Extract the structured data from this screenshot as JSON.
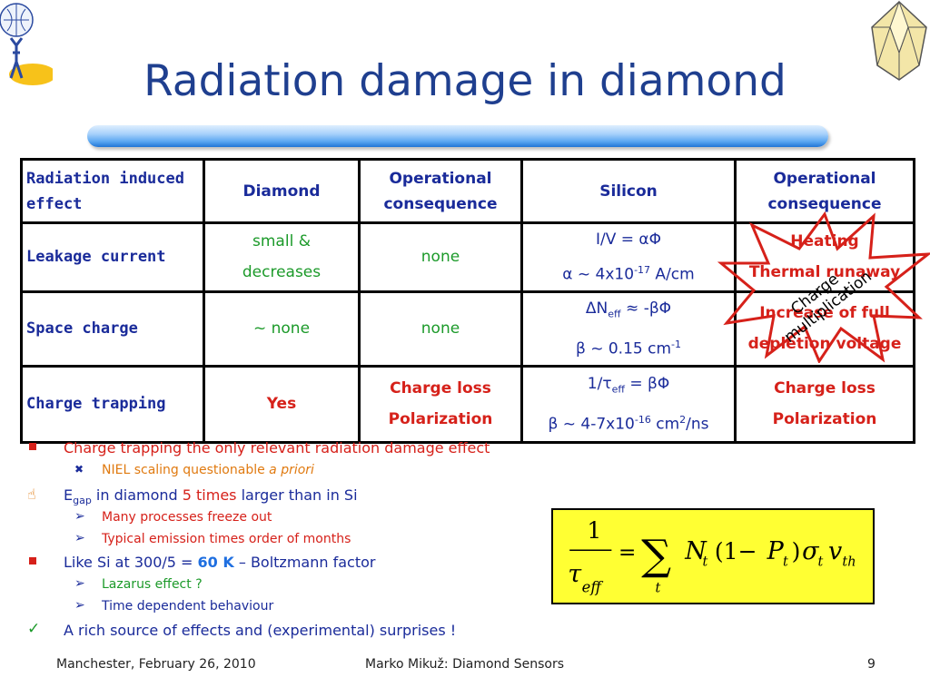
{
  "title": "Radiation damage in diamond",
  "table": {
    "headers": [
      "Radiation induced effect",
      "Diamond",
      "Operational consequence",
      "Silicon",
      "Operational consequence"
    ],
    "rows": [
      {
        "label": "Leakage current",
        "diamond": [
          "small &",
          "decreases"
        ],
        "diamond_consequence": "none",
        "silicon_l1": "I/V = αΦ",
        "silicon_l2_pre": "α ~ 4x10",
        "silicon_l2_sup": "-17",
        "silicon_l2_post": " A/cm",
        "silicon_consequence": [
          "Heating",
          "Thermal runaway"
        ]
      },
      {
        "label": "Space charge",
        "diamond": "~ none",
        "diamond_consequence": "none",
        "silicon_l1_pre": "ΔN",
        "silicon_l1_sub": "eff",
        "silicon_l1_post": " ≈ -βΦ",
        "silicon_l2_pre": "β ~ 0.15 cm",
        "silicon_l2_sup": "-1",
        "silicon_consequence": [
          "Increase of full",
          "depletion voltage"
        ]
      },
      {
        "label": "Charge trapping",
        "diamond": "Yes",
        "diamond_consequence": [
          "Charge loss",
          "Polarization"
        ],
        "silicon_l1_pre": "1/τ",
        "silicon_l1_sub": "eff",
        "silicon_l1_post": " = βΦ",
        "silicon_l2_pre": "β ~ 4-7x10",
        "silicon_l2_sup": "-16",
        "silicon_l2_mid": " cm",
        "silicon_l2_sup2": "2",
        "silicon_l2_post": "/ns",
        "silicon_consequence": [
          "Charge loss",
          "Polarization"
        ]
      }
    ],
    "starburst_text": [
      "Charge",
      "multiplication"
    ]
  },
  "bullets": {
    "b1": "Charge trapping the only relevant radiation damage effect",
    "b1_1_pre": "NIEL scaling questionable ",
    "b1_1_em": "a priori",
    "b2_pre": "E",
    "b2_sub": "gap",
    "b2_mid": " in diamond ",
    "b2_hl": "5 times",
    "b2_post": " larger than in Si",
    "b2_1": "Many processes freeze out",
    "b2_2": "Typical emission times order of months",
    "b3_pre": "Like Si at 300/5 = ",
    "b3_hl": "60 K",
    "b3_post": " – Boltzmann factor",
    "b3_1": "Lazarus effect ?",
    "b3_2": "Time dependent behaviour",
    "b4": "A rich source of effects and (experimental) surprises !"
  },
  "formula": {
    "numerator": "1",
    "tau": "τ",
    "eff": "eff",
    "eq": "=",
    "sum": "∑",
    "sum_index": "t",
    "N": "N",
    "N_sub": "t",
    "open": "(1−",
    "P": "P",
    "P_sub": "t",
    "close": ")",
    "sigma": "σ",
    "sigma_sub": "t",
    "v": "v",
    "v_sub": "th"
  },
  "footer": {
    "left": "Manchester, February 26, 2010",
    "center": "Marko Mikuž: Diamond Sensors",
    "page": "9"
  },
  "colors": {
    "title": "#1f3f8f",
    "table_text": "#1a2b9a",
    "green": "#1c9a2a",
    "red": "#d6211a",
    "formula_bg": "#ffff33"
  }
}
